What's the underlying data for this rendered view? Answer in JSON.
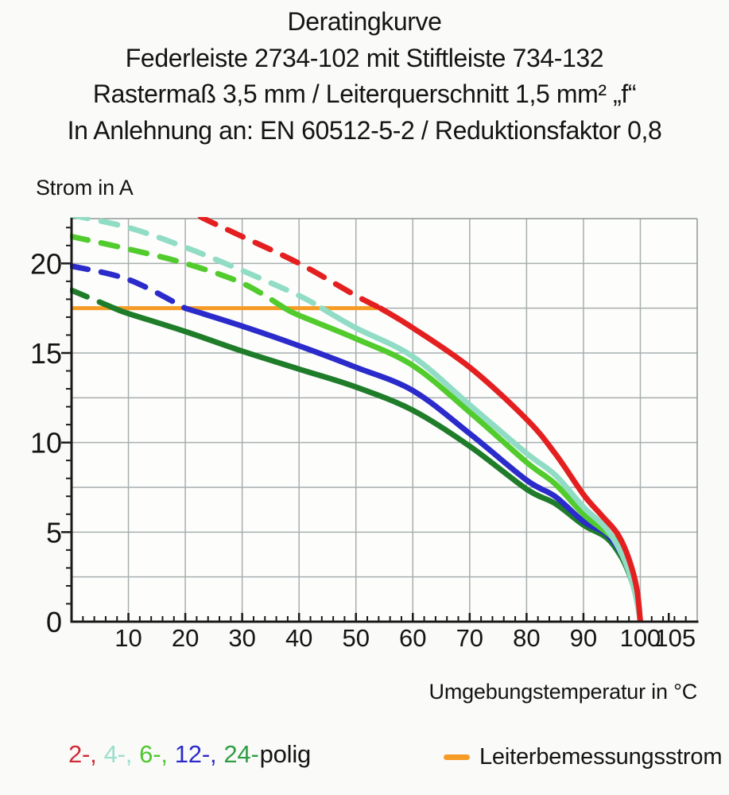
{
  "title": {
    "line1": "Deratingkurve",
    "line2": "Federleiste 2734-102 mit Stiftleiste 734-132",
    "line3": "Rastermaß 3,5 mm / Leiterquerschnitt 1,5 mm² „f“",
    "line4": "In Anlehnung an: EN 60512-5-2 / Reduktionsfaktor 0,8"
  },
  "legend": {
    "pole_segments": [
      {
        "text": "2-,",
        "color": "#cf2b3a"
      },
      {
        "text": "4-,",
        "color": "#9adfcc"
      },
      {
        "text": "6-,",
        "color": "#50c72e"
      },
      {
        "text": "12-,",
        "color": "#2d2bc9"
      },
      {
        "text": "24-",
        "color": "#2f9e45"
      },
      {
        "text": "polig",
        "color": "#141414"
      }
    ],
    "rated_label": "Leiterbemessungsstrom",
    "rated_color": "#f69c26"
  },
  "chart_data": {
    "type": "line",
    "title": "Deratingkurve",
    "xlabel": "Umgebungstemperatur in °C",
    "ylabel": "Strom in A",
    "xlim": [
      0,
      110
    ],
    "ylim": [
      0,
      22.5
    ],
    "grid": {
      "x_step": 10,
      "y_step": 2.5,
      "color": "#a7aeae",
      "frame_color": "#8f9898"
    },
    "x_tick_labels": [
      10,
      20,
      30,
      40,
      50,
      60,
      70,
      80,
      90,
      100,
      105
    ],
    "y_tick_labels": [
      0,
      5,
      10,
      15,
      20
    ],
    "x_minor_step": 2,
    "y_minor_step": 1,
    "rated_current": 17.5,
    "rated_current_line": {
      "label": "Leiterbemessungsstrom",
      "color": "#f69c26",
      "y": 17.5,
      "x_start": 0,
      "x_end": 54.3
    },
    "dash_pattern": [
      21,
      17
    ],
    "legend_note": "dashed where current exceeds Leiterbemessungsstrom 17.5 A",
    "series": [
      {
        "name": "24-polig",
        "color": "#1f7d2a",
        "points": [
          [
            0,
            18.5
          ],
          [
            7.5,
            17.5
          ],
          [
            10,
            17.2
          ],
          [
            20,
            16.2
          ],
          [
            30,
            15.1
          ],
          [
            40,
            14.1
          ],
          [
            50,
            13.1
          ],
          [
            60,
            11.8
          ],
          [
            70,
            9.8
          ],
          [
            80,
            7.4
          ],
          [
            85,
            6.6
          ],
          [
            90,
            5.4
          ],
          [
            94,
            4.7
          ],
          [
            96.5,
            3.7
          ],
          [
            98,
            2.7
          ],
          [
            99.4,
            1.3
          ],
          [
            100,
            0
          ]
        ]
      },
      {
        "name": "12-polig",
        "color": "#2b2bcb",
        "points": [
          [
            0,
            19.85
          ],
          [
            10,
            19.1
          ],
          [
            20,
            17.5
          ],
          [
            30,
            16.5
          ],
          [
            40,
            15.4
          ],
          [
            50,
            14.2
          ],
          [
            60,
            12.9
          ],
          [
            70,
            10.5
          ],
          [
            80,
            7.9
          ],
          [
            85,
            7.0
          ],
          [
            90,
            5.6
          ],
          [
            94,
            4.9
          ],
          [
            96.5,
            3.9
          ],
          [
            98,
            2.9
          ],
          [
            99.4,
            1.4
          ],
          [
            100,
            0
          ]
        ]
      },
      {
        "name": "6-polig",
        "color": "#52cb2d",
        "points": [
          [
            0,
            21.5
          ],
          [
            10,
            20.8
          ],
          [
            20,
            20.0
          ],
          [
            30,
            18.9
          ],
          [
            37.5,
            17.5
          ],
          [
            40,
            17.1
          ],
          [
            50,
            15.8
          ],
          [
            60,
            14.3
          ],
          [
            70,
            11.7
          ],
          [
            80,
            8.9
          ],
          [
            85,
            7.7
          ],
          [
            90,
            6.0
          ],
          [
            94,
            5.0
          ],
          [
            96,
            4.4
          ],
          [
            98,
            3.0
          ],
          [
            99.4,
            1.5
          ],
          [
            100,
            0
          ]
        ]
      },
      {
        "name": "4-polig",
        "color": "#90dcc5",
        "points": [
          [
            0,
            22.7
          ],
          [
            10,
            22.0
          ],
          [
            20,
            20.9
          ],
          [
            30,
            19.6
          ],
          [
            40,
            18.2
          ],
          [
            44,
            17.5
          ],
          [
            50,
            16.4
          ],
          [
            60,
            14.8
          ],
          [
            70,
            12.1
          ],
          [
            80,
            9.4
          ],
          [
            85,
            8.2
          ],
          [
            90,
            6.4
          ],
          [
            94,
            5.2
          ],
          [
            97,
            3.6
          ],
          [
            99,
            1.7
          ],
          [
            100,
            0
          ]
        ]
      },
      {
        "name": "2-polig",
        "color": "#e41f20",
        "points": [
          [
            18,
            23.4
          ],
          [
            23.3,
            22.5
          ],
          [
            30,
            21.5
          ],
          [
            40,
            20.0
          ],
          [
            50,
            18.2
          ],
          [
            54.3,
            17.5
          ],
          [
            60,
            16.4
          ],
          [
            70,
            14.2
          ],
          [
            80,
            11.3
          ],
          [
            85,
            9.4
          ],
          [
            90,
            7.1
          ],
          [
            93,
            6.0
          ],
          [
            96,
            4.9
          ],
          [
            98,
            3.5
          ],
          [
            99.4,
            1.8
          ],
          [
            100,
            0
          ]
        ]
      }
    ]
  }
}
